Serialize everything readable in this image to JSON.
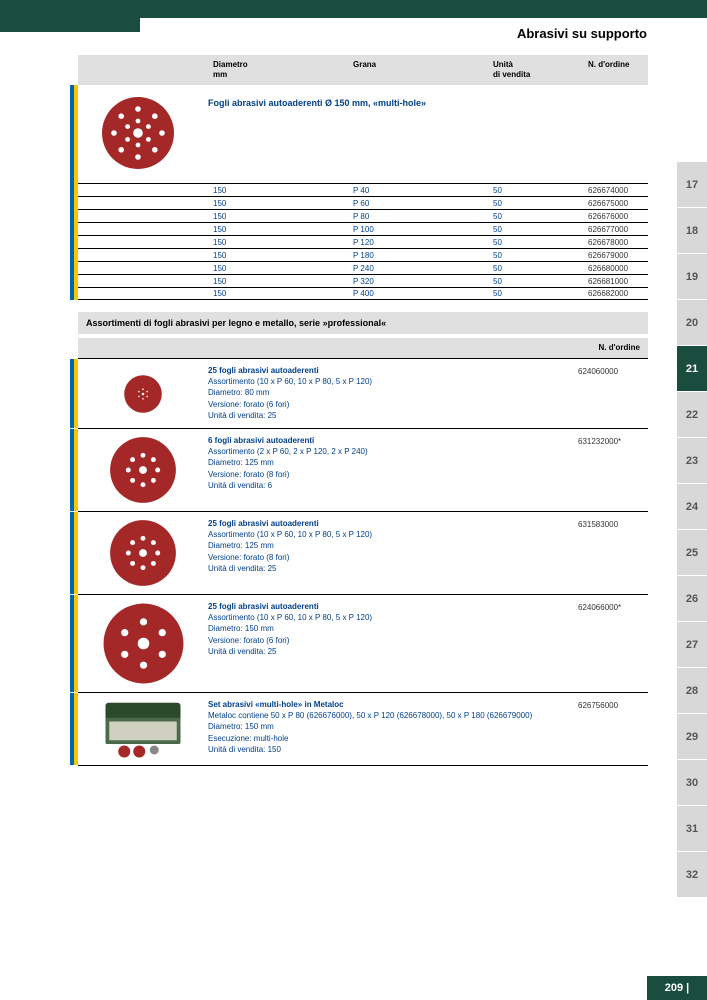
{
  "header": {
    "title": "Abrasivi su supporto"
  },
  "table1": {
    "headers": {
      "diametro": "Diametro",
      "diametro_unit": "mm",
      "grana": "Grana",
      "unita": "Unità",
      "unita2": "di vendita",
      "ordine": "N. d'ordine"
    },
    "disc_title": "Fogli abrasivi autoaderenti Ø 150 mm, «multi-hole»",
    "rows": [
      {
        "d": "150",
        "g": "P 40",
        "u": "50",
        "o": "626674000"
      },
      {
        "d": "150",
        "g": "P 60",
        "u": "50",
        "o": "626675000"
      },
      {
        "d": "150",
        "g": "P 80",
        "u": "50",
        "o": "626676000"
      },
      {
        "d": "150",
        "g": "P 100",
        "u": "50",
        "o": "626677000"
      },
      {
        "d": "150",
        "g": "P 120",
        "u": "50",
        "o": "626678000"
      },
      {
        "d": "150",
        "g": "P 180",
        "u": "50",
        "o": "626679000"
      },
      {
        "d": "150",
        "g": "P 240",
        "u": "50",
        "o": "626680000"
      },
      {
        "d": "150",
        "g": "P 320",
        "u": "50",
        "o": "626681000"
      },
      {
        "d": "150",
        "g": "P 400",
        "u": "50",
        "o": "626682000"
      }
    ]
  },
  "section2": {
    "title": "Assortimenti di fogli abrasivi per legno e metallo, serie »professional«",
    "ordine_hdr": "N. d'ordine"
  },
  "assort": [
    {
      "disc": 40,
      "holes": 6,
      "t": "25 fogli abrasivi autoaderenti",
      "l1": "Assortimento (10 x P 60, 10 x P 80, 5 x P 120)",
      "l2": "Diametro: 80 mm",
      "l3": "Versione: forato (6 fori)",
      "l4": "Unità di vendita: 25",
      "o": "624060000"
    },
    {
      "disc": 70,
      "holes": 8,
      "t": "6 fogli abrasivi autoaderenti",
      "l1": "Assortimento (2 x P 60, 2 x P 120, 2 x P 240)",
      "l2": "Diametro: 125 mm",
      "l3": "Versione: forato (8 fori)",
      "l4": "Unità di vendita: 6",
      "o": "631232000*"
    },
    {
      "disc": 70,
      "holes": 8,
      "t": "25 fogli abrasivi autoaderenti",
      "l1": "Assortimento (10 x P 60, 10 x P 80, 5 x P 120)",
      "l2": "Diametro: 125 mm",
      "l3": "Versione: forato (8 fori)",
      "l4": "Unità di vendita: 25",
      "o": "631583000"
    },
    {
      "disc": 85,
      "holes": 6,
      "t": "25 fogli abrasivi autoaderenti",
      "l1": "Assortimento (10 x P 60, 10 x P 80, 5 x P 120)",
      "l2": "Diametro: 150 mm",
      "l3": "Versione: forato (6 fori)",
      "l4": "Unità di vendita: 25",
      "o": "624066000*"
    },
    {
      "metaloc": true,
      "t": "Set abrasivi «multi-hole» in Metaloc",
      "l1": "Metaloc contiene 50 x P 80 (626676000), 50 x P 120 (626678000), 50 x P 180 (626679000)",
      "l2": "Diametro: 150 mm",
      "l3": "Esecuzione: multi-hole",
      "l4": "Unità di vendita: 150",
      "o": "626756000"
    }
  ],
  "tabs": [
    "17",
    "18",
    "19",
    "20",
    "21",
    "22",
    "23",
    "24",
    "25",
    "26",
    "27",
    "28",
    "29",
    "30",
    "31",
    "32"
  ],
  "active_tab": "21",
  "page": "209 |",
  "colors": {
    "disc": "#a52828",
    "green": "#1a4d3e",
    "yellow": "#f5c800",
    "blue": "#0066b3",
    "hole": "#ffffff"
  }
}
